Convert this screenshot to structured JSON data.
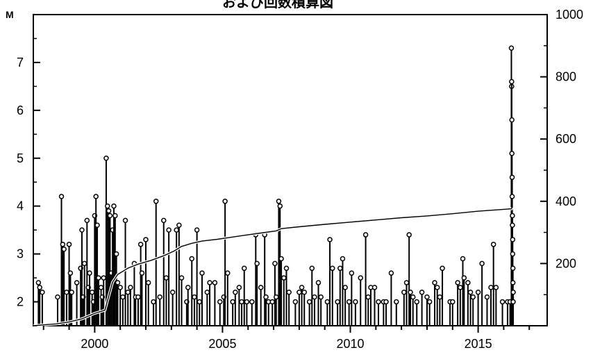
{
  "chart_data": {
    "type": "stem+line",
    "title": "および回数積算図",
    "ylabel_left": "M",
    "x_ticks": [
      2000,
      2005,
      2010,
      2015
    ],
    "x_range": [
      1997.6,
      2017.7
    ],
    "y_left_ticks": [
      2,
      3,
      4,
      5,
      6,
      7
    ],
    "y_left_range": [
      1.5,
      8.0
    ],
    "y_right_ticks": [
      200,
      400,
      600,
      800,
      1000
    ],
    "y_right_range": [
      0,
      1000
    ],
    "grid": false,
    "series": [
      {
        "kind": "magnitude stems",
        "points": [
          [
            1997.8,
            2.4
          ],
          [
            1997.85,
            2.3
          ],
          [
            1997.95,
            2.2
          ],
          [
            1998.55,
            2.1
          ],
          [
            1998.7,
            4.2
          ],
          [
            1998.75,
            3.2
          ],
          [
            1998.8,
            3.1
          ],
          [
            1998.9,
            2.2
          ],
          [
            1999.0,
            3.2
          ],
          [
            1999.05,
            2.6
          ],
          [
            1999.1,
            2.2
          ],
          [
            1999.3,
            2.4
          ],
          [
            1999.45,
            2.7
          ],
          [
            1999.5,
            3.5
          ],
          [
            1999.55,
            2.1
          ],
          [
            1999.6,
            2.8
          ],
          [
            1999.7,
            3.7
          ],
          [
            1999.75,
            2.3
          ],
          [
            1999.8,
            2.6
          ],
          [
            1999.9,
            2.2
          ],
          [
            1999.95,
            2.0
          ],
          [
            2000.0,
            3.8
          ],
          [
            2000.05,
            4.2
          ],
          [
            2000.1,
            3.6
          ],
          [
            2000.15,
            2.5
          ],
          [
            2000.25,
            2.3
          ],
          [
            2000.3,
            2.1
          ],
          [
            2000.35,
            2.5
          ],
          [
            2000.45,
            5.0
          ],
          [
            2000.5,
            4.0
          ],
          [
            2000.55,
            3.9
          ],
          [
            2000.6,
            3.8
          ],
          [
            2000.65,
            2.6
          ],
          [
            2000.7,
            3.5
          ],
          [
            2000.75,
            4.0
          ],
          [
            2000.8,
            3.8
          ],
          [
            2000.85,
            3.0
          ],
          [
            2000.9,
            2.4
          ],
          [
            2001.0,
            2.3
          ],
          [
            2001.1,
            2.1
          ],
          [
            2001.2,
            3.7
          ],
          [
            2001.3,
            2.2
          ],
          [
            2001.4,
            2.3
          ],
          [
            2001.55,
            2.8
          ],
          [
            2001.6,
            2.1
          ],
          [
            2001.7,
            2.1
          ],
          [
            2001.8,
            3.2
          ],
          [
            2001.85,
            2.6
          ],
          [
            2002.0,
            3.3
          ],
          [
            2002.1,
            2.4
          ],
          [
            2002.3,
            2.0
          ],
          [
            2002.4,
            4.1
          ],
          [
            2002.55,
            2.1
          ],
          [
            2002.7,
            3.7
          ],
          [
            2002.8,
            2.5
          ],
          [
            2002.9,
            3.5
          ],
          [
            2003.05,
            2.2
          ],
          [
            2003.2,
            3.5
          ],
          [
            2003.3,
            3.6
          ],
          [
            2003.4,
            2.5
          ],
          [
            2003.6,
            2.0
          ],
          [
            2003.65,
            2.3
          ],
          [
            2003.8,
            2.9
          ],
          [
            2003.9,
            2.1
          ],
          [
            2004.0,
            3.5
          ],
          [
            2004.1,
            2.0
          ],
          [
            2004.2,
            2.6
          ],
          [
            2004.4,
            2.2
          ],
          [
            2004.5,
            2.4
          ],
          [
            2004.7,
            2.4
          ],
          [
            2004.9,
            2.0
          ],
          [
            2005.05,
            2.1
          ],
          [
            2005.1,
            4.1
          ],
          [
            2005.2,
            2.6
          ],
          [
            2005.4,
            2.0
          ],
          [
            2005.5,
            2.2
          ],
          [
            2005.65,
            2.3
          ],
          [
            2005.75,
            2.0
          ],
          [
            2005.85,
            2.7
          ],
          [
            2005.95,
            2.0
          ],
          [
            2006.15,
            2.0
          ],
          [
            2006.3,
            3.4
          ],
          [
            2006.35,
            2.8
          ],
          [
            2006.5,
            2.3
          ],
          [
            2006.65,
            3.4
          ],
          [
            2006.7,
            2.1
          ],
          [
            2006.8,
            2.0
          ],
          [
            2006.95,
            2.0
          ],
          [
            2007.05,
            2.8
          ],
          [
            2007.1,
            2.1
          ],
          [
            2007.2,
            4.1
          ],
          [
            2007.25,
            4.0
          ],
          [
            2007.3,
            2.9
          ],
          [
            2007.4,
            2.5
          ],
          [
            2007.5,
            2.7
          ],
          [
            2007.6,
            2.2
          ],
          [
            2007.85,
            2.0
          ],
          [
            2008.0,
            2.2
          ],
          [
            2008.1,
            2.3
          ],
          [
            2008.2,
            2.2
          ],
          [
            2008.4,
            2.0
          ],
          [
            2008.5,
            2.7
          ],
          [
            2008.6,
            2.1
          ],
          [
            2008.75,
            2.4
          ],
          [
            2008.85,
            2.1
          ],
          [
            2009.1,
            2.0
          ],
          [
            2009.2,
            3.3
          ],
          [
            2009.3,
            2.7
          ],
          [
            2009.5,
            2.0
          ],
          [
            2009.6,
            2.7
          ],
          [
            2009.7,
            2.9
          ],
          [
            2009.8,
            2.3
          ],
          [
            2009.95,
            2.0
          ],
          [
            2010.05,
            2.6
          ],
          [
            2010.2,
            2.0
          ],
          [
            2010.4,
            2.5
          ],
          [
            2010.6,
            3.4
          ],
          [
            2010.7,
            2.1
          ],
          [
            2010.8,
            2.3
          ],
          [
            2010.95,
            2.3
          ],
          [
            2011.1,
            2.0
          ],
          [
            2011.3,
            2.0
          ],
          [
            2011.4,
            2.0
          ],
          [
            2011.6,
            2.6
          ],
          [
            2011.8,
            2.0
          ],
          [
            2012.1,
            2.2
          ],
          [
            2012.2,
            2.4
          ],
          [
            2012.3,
            3.4
          ],
          [
            2012.35,
            2.2
          ],
          [
            2012.45,
            2.1
          ],
          [
            2012.6,
            2.0
          ],
          [
            2012.8,
            2.2
          ],
          [
            2013.0,
            2.1
          ],
          [
            2013.1,
            2.0
          ],
          [
            2013.3,
            2.4
          ],
          [
            2013.4,
            2.3
          ],
          [
            2013.5,
            2.1
          ],
          [
            2013.6,
            2.7
          ],
          [
            2013.9,
            2.0
          ],
          [
            2014.0,
            2.0
          ],
          [
            2014.2,
            2.4
          ],
          [
            2014.3,
            2.3
          ],
          [
            2014.4,
            2.9
          ],
          [
            2014.45,
            2.5
          ],
          [
            2014.6,
            2.4
          ],
          [
            2014.7,
            2.2
          ],
          [
            2014.8,
            2.1
          ],
          [
            2015.0,
            2.2
          ],
          [
            2015.15,
            2.8
          ],
          [
            2015.35,
            2.1
          ],
          [
            2015.5,
            2.3
          ],
          [
            2015.6,
            3.2
          ],
          [
            2015.7,
            2.3
          ],
          [
            2015.95,
            2.0
          ],
          [
            2016.15,
            2.0
          ],
          [
            2016.25,
            2.0
          ],
          [
            2016.3,
            7.3
          ],
          [
            2016.31,
            6.5
          ],
          [
            2016.31,
            6.6
          ],
          [
            2016.32,
            5.8
          ],
          [
            2016.32,
            5.1
          ],
          [
            2016.33,
            4.6
          ],
          [
            2016.33,
            4.2
          ],
          [
            2016.34,
            3.8
          ],
          [
            2016.34,
            3.6
          ],
          [
            2016.35,
            3.3
          ],
          [
            2016.35,
            3.0
          ],
          [
            2016.36,
            2.7
          ],
          [
            2016.36,
            2.4
          ],
          [
            2016.37,
            2.2
          ],
          [
            2016.37,
            2.0
          ]
        ]
      },
      {
        "kind": "cumulative count",
        "axis": "right",
        "points": [
          [
            1997.6,
            0
          ],
          [
            1998.0,
            3
          ],
          [
            1998.5,
            6
          ],
          [
            1999.0,
            12
          ],
          [
            1999.5,
            22
          ],
          [
            2000.0,
            40
          ],
          [
            2000.4,
            50
          ],
          [
            2000.55,
            95
          ],
          [
            2000.7,
            140
          ],
          [
            2000.9,
            165
          ],
          [
            2001.3,
            185
          ],
          [
            2001.7,
            198
          ],
          [
            2002.2,
            210
          ],
          [
            2002.7,
            225
          ],
          [
            2003.1,
            240
          ],
          [
            2003.4,
            255
          ],
          [
            2003.8,
            265
          ],
          [
            2004.2,
            272
          ],
          [
            2004.8,
            278
          ],
          [
            2005.3,
            284
          ],
          [
            2005.8,
            290
          ],
          [
            2006.5,
            298
          ],
          [
            2007.1,
            305
          ],
          [
            2007.3,
            312
          ],
          [
            2008.0,
            318
          ],
          [
            2009.0,
            326
          ],
          [
            2010.0,
            333
          ],
          [
            2011.0,
            340
          ],
          [
            2012.0,
            347
          ],
          [
            2013.0,
            353
          ],
          [
            2014.0,
            360
          ],
          [
            2015.0,
            368
          ],
          [
            2016.0,
            374
          ],
          [
            2016.3,
            376
          ],
          [
            2016.32,
            380
          ]
        ]
      }
    ]
  }
}
